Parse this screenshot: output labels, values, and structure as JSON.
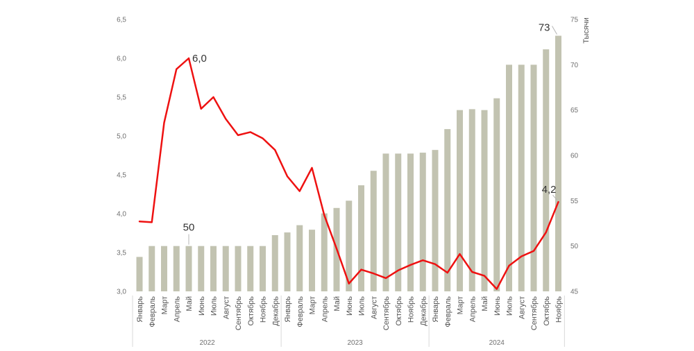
{
  "chart_data": {
    "type": "bar+line",
    "categories": [
      "Январь",
      "Февраль",
      "Март",
      "Апрель",
      "Май",
      "Июнь",
      "Июль",
      "Август",
      "Сентябрь",
      "Октябрь",
      "Ноябрь",
      "Декабрь",
      "Январь",
      "Февраль",
      "Март",
      "Апрель",
      "Май",
      "Июнь",
      "Июль",
      "Август",
      "Сентябрь",
      "Октябрь",
      "Ноябрь",
      "Декабрь",
      "Январь",
      "Февраль",
      "Март",
      "Апрель",
      "Май",
      "Июнь",
      "Июль",
      "Август",
      "Сентябрь",
      "Октябрь",
      "Ноябрь"
    ],
    "years": [
      {
        "label": "2022",
        "start": 0,
        "end": 11
      },
      {
        "label": "2023",
        "start": 12,
        "end": 23
      },
      {
        "label": "2024",
        "start": 24,
        "end": 34
      }
    ],
    "series": [
      {
        "type": "bar",
        "axis": "right",
        "values": [
          48.8,
          50,
          50,
          50,
          50,
          50,
          50,
          50,
          50,
          50,
          50,
          51.2,
          51.5,
          52.3,
          51.8,
          53.6,
          54.2,
          55,
          56.7,
          58.3,
          60.2,
          60.2,
          60.2,
          60.3,
          60.6,
          62.9,
          65,
          65.1,
          65,
          66.3,
          70,
          70,
          70,
          71.7,
          73.2
        ]
      },
      {
        "type": "line",
        "axis": "left",
        "values": [
          3.9,
          3.89,
          5.17,
          5.86,
          6.0,
          5.35,
          5.5,
          5.22,
          5.01,
          5.05,
          4.97,
          4.82,
          4.48,
          4.29,
          4.59,
          3.98,
          3.55,
          3.1,
          3.28,
          3.23,
          3.17,
          3.27,
          3.34,
          3.4,
          3.35,
          3.24,
          3.48,
          3.25,
          3.2,
          3.03,
          3.33,
          3.45,
          3.52,
          3.76,
          4.15
        ]
      }
    ],
    "left_axis": {
      "ticks": [
        "3,0",
        "3,5",
        "4,0",
        "4,5",
        "5,0",
        "5,5",
        "6,0",
        "6,5"
      ],
      "min": 3.0,
      "max": 6.5
    },
    "right_axis": {
      "ticks": [
        "45",
        "50",
        "55",
        "60",
        "65",
        "70",
        "75"
      ],
      "min": 45,
      "max": 75,
      "label": "Тысячи"
    },
    "annotations": [
      {
        "text": "50",
        "series": 0,
        "index": 4
      },
      {
        "text": "6,0",
        "series": 1,
        "index": 4
      },
      {
        "text": "73",
        "series": 0,
        "index": 34
      },
      {
        "text": "4,2",
        "series": 1,
        "index": 34
      }
    ],
    "colors": {
      "bar": "#c2c3b1",
      "line": "#ee1111",
      "axis": "#d9d9d9"
    }
  }
}
